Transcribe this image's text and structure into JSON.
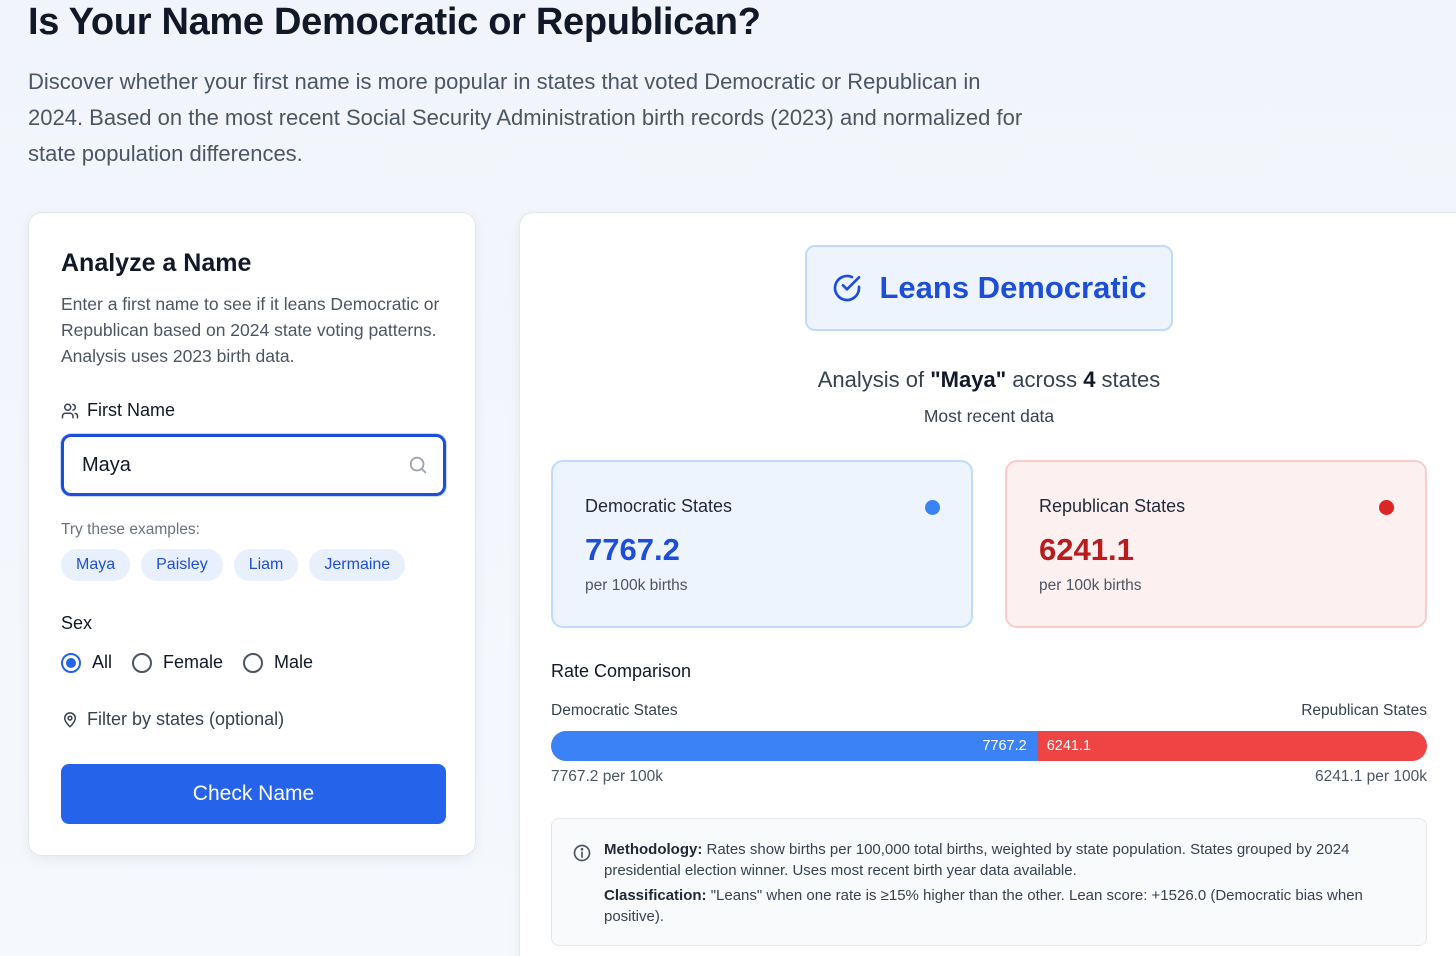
{
  "header": {
    "title": "Is Your Name Democratic or Republican?",
    "description": "Discover whether your first name is more popular in states that voted Democratic or Republican in 2024. Based on the most recent Social Security Administration birth records (2023) and normalized for state population differences."
  },
  "form": {
    "heading": "Analyze a Name",
    "description": "Enter a first name to see if it leans Democratic or Republican based on 2024 state voting patterns. Analysis uses 2023 birth data.",
    "first_name_label": "First Name",
    "first_name_value": "Maya",
    "examples_label": "Try these examples:",
    "examples": [
      "Maya",
      "Paisley",
      "Liam",
      "Jermaine"
    ],
    "sex_label": "Sex",
    "sex_options": [
      "All",
      "Female",
      "Male"
    ],
    "sex_selected": "All",
    "filter_label": "Filter by states (optional)",
    "submit_label": "Check Name"
  },
  "result": {
    "verdict": "Leans Democratic",
    "analysis_prefix": "Analysis of ",
    "analysis_name": "\"Maya\"",
    "analysis_middle": " across ",
    "analysis_count": "4",
    "analysis_suffix": " states",
    "recency": "Most recent data",
    "democratic": {
      "label": "Democratic States",
      "value": "7767.2",
      "unit": "per 100k births",
      "color": "#3b82f6",
      "value_color": "#1d4ed8"
    },
    "republican": {
      "label": "Republican States",
      "value": "6241.1",
      "unit": "per 100k births",
      "color": "#ef4444",
      "value_color": "#b91c1c"
    },
    "comparison": {
      "heading": "Rate Comparison",
      "left_label": "Democratic States",
      "right_label": "Republican States",
      "dem_value": 7767.2,
      "rep_value": 6241.1,
      "dem_bar_text": "7767.2",
      "rep_bar_text": "6241.1",
      "left_caption": "7767.2 per 100k",
      "right_caption": "6241.1 per 100k"
    },
    "methodology": {
      "label": "Methodology:",
      "text": " Rates show births per 100,000 total births, weighted by state population. States grouped by 2024 presidential election winner. Uses most recent birth year data available.",
      "classification_label": "Classification:",
      "classification_text": " \"Leans\" when one rate is ≥15% higher than the other. Lean score: +1526.0 (Democratic bias when positive)."
    }
  }
}
